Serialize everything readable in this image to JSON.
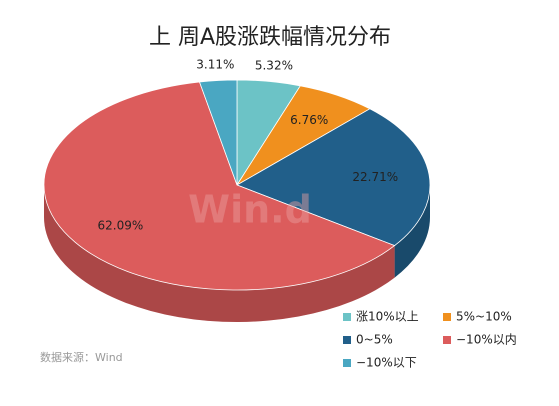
{
  "chart_data": {
    "type": "pie3d",
    "title": "上 周A股涨跌幅情况分布",
    "categories": [
      "涨10%以上",
      "5%~10%",
      "0~5%",
      "−10%以内",
      "−10%以下"
    ],
    "values": [
      5.32,
      6.76,
      22.71,
      62.09,
      3.11
    ],
    "value_labels": [
      "5.32%",
      "6.76%",
      "22.71%",
      "62.09%",
      "3.11%"
    ],
    "colors": [
      "#6cc3c6",
      "#f0901e",
      "#215f8a",
      "#dc5c5c",
      "#4aa7c2"
    ],
    "source": "数据来源：Wind",
    "watermark": "Win.d",
    "legend": "bottom-right"
  }
}
